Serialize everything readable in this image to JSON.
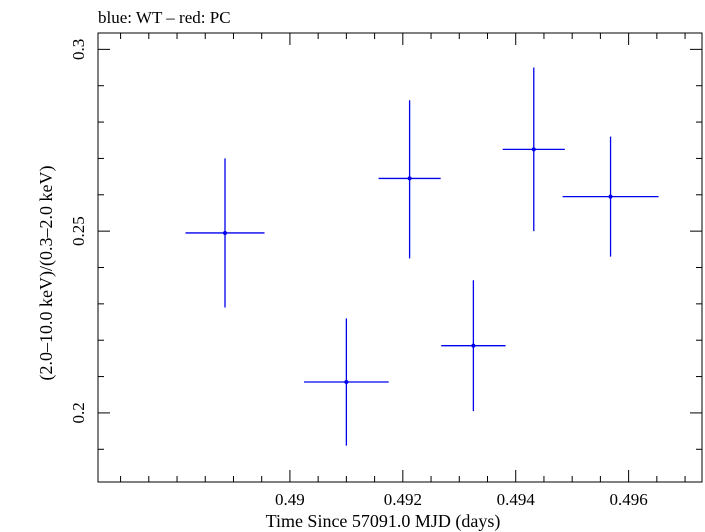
{
  "chart_data": {
    "type": "scatter",
    "title": "blue: WT – red: PC",
    "xlabel": "Time Since 57091.0 MJD (days)",
    "ylabel": "(2.0–10.0 keV)/(0.3–2.0 keV)",
    "xlim": [
      0.4866,
      0.4973
    ],
    "ylim": [
      0.181,
      0.3045
    ],
    "x_ticks": [
      {
        "value": 0.49,
        "label": "0.49"
      },
      {
        "value": 0.492,
        "label": "0.492"
      },
      {
        "value": 0.494,
        "label": "0.494"
      },
      {
        "value": 0.496,
        "label": "0.496"
      }
    ],
    "y_ticks": [
      {
        "value": 0.2,
        "label": "0.2"
      },
      {
        "value": 0.25,
        "label": "0.25"
      },
      {
        "value": 0.3,
        "label": "0.3"
      }
    ],
    "series": [
      {
        "color": "#0000ee",
        "points": [
          {
            "x": 0.48885,
            "xerr": 0.0007,
            "y": 0.2495,
            "yerr_low": 0.0205,
            "yerr_high": 0.0205
          },
          {
            "x": 0.491,
            "xerr": 0.00075,
            "y": 0.2085,
            "yerr_low": 0.0175,
            "yerr_high": 0.0175
          },
          {
            "x": 0.49212,
            "xerr": 0.00055,
            "y": 0.2645,
            "yerr_low": 0.022,
            "yerr_high": 0.0215
          },
          {
            "x": 0.49325,
            "xerr": 0.00057,
            "y": 0.2185,
            "yerr_low": 0.018,
            "yerr_high": 0.018
          },
          {
            "x": 0.49432,
            "xerr": 0.00055,
            "y": 0.2725,
            "yerr_low": 0.0225,
            "yerr_high": 0.0225
          },
          {
            "x": 0.49568,
            "xerr": 0.00085,
            "y": 0.2595,
            "yerr_low": 0.0165,
            "yerr_high": 0.0165
          }
        ]
      }
    ]
  }
}
